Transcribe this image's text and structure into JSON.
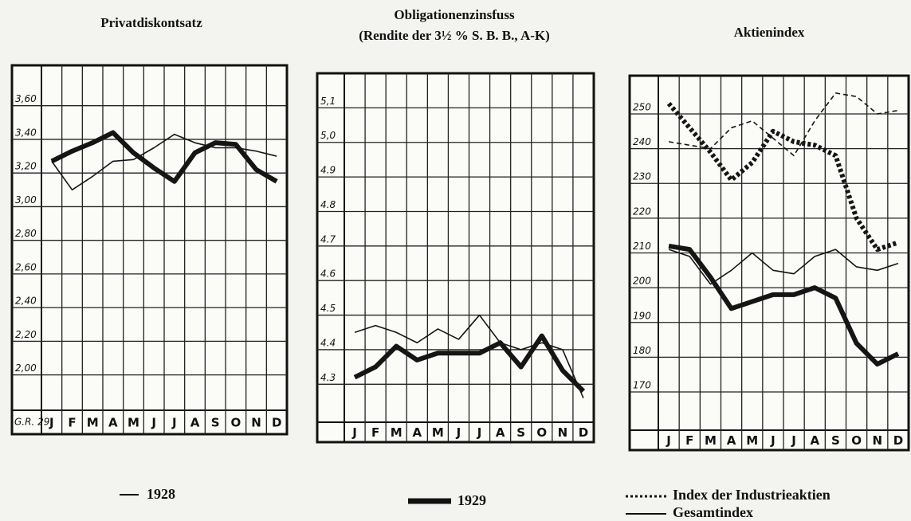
{
  "chart_data": [
    {
      "type": "line",
      "title": "Privatdiskontsatz",
      "annotation": "G.R. 29.",
      "categories": [
        "J",
        "F",
        "M",
        "A",
        "M",
        "J",
        "J",
        "A",
        "S",
        "O",
        "N",
        "D"
      ],
      "ylim": [
        1.79,
        3.84
      ],
      "yticks": [
        {
          "value": 2.0,
          "label": "2,00"
        },
        {
          "value": 2.2,
          "label": "2,20"
        },
        {
          "value": 2.4,
          "label": "2,40"
        },
        {
          "value": 2.6,
          "label": "2,60"
        },
        {
          "value": 2.8,
          "label": "2,80"
        },
        {
          "value": 3.0,
          "label": "3,00"
        },
        {
          "value": 3.2,
          "label": "3,20"
        },
        {
          "value": 3.4,
          "label": "3,40"
        },
        {
          "value": 3.6,
          "label": "3,60"
        }
      ],
      "grid": true,
      "series": [
        {
          "name": "1928",
          "color": "#151515",
          "width": "thin",
          "dashed": false,
          "values": [
            3.27,
            3.1,
            3.18,
            3.27,
            3.28,
            3.35,
            3.43,
            3.38,
            3.35,
            3.35,
            3.33,
            3.3
          ]
        },
        {
          "name": "1929",
          "color": "#151515",
          "width": "thick",
          "dashed": false,
          "values": [
            3.27,
            3.33,
            3.38,
            3.44,
            3.32,
            3.23,
            3.15,
            3.32,
            3.38,
            3.37,
            3.22,
            3.15
          ]
        }
      ]
    },
    {
      "type": "line",
      "title": "Obligationenzinsfuss",
      "subtitle": "(Rendite der 3½ % S. B. B., A-K)",
      "categories": [
        "J",
        "F",
        "M",
        "A",
        "M",
        "J",
        "J",
        "A",
        "S",
        "O",
        "N",
        "D"
      ],
      "ylim": [
        4.19,
        5.2
      ],
      "yticks": [
        4.3,
        4.4,
        4.5,
        4.6,
        4.7,
        4.8,
        4.9,
        {
          "value": 5.0,
          "label": "5,0"
        },
        {
          "value": 5.1,
          "label": "5,1"
        }
      ],
      "grid": true,
      "series": [
        {
          "name": "1928",
          "color": "#151515",
          "width": "thin",
          "dashed": false,
          "values": [
            4.45,
            4.47,
            4.45,
            4.42,
            4.46,
            4.43,
            4.5,
            4.42,
            4.4,
            4.42,
            4.4,
            4.26
          ]
        },
        {
          "name": "1929",
          "color": "#151515",
          "width": "thick",
          "dashed": false,
          "values": [
            4.32,
            4.35,
            4.41,
            4.37,
            4.39,
            4.39,
            4.39,
            4.42,
            4.35,
            4.44,
            4.34,
            4.28
          ]
        }
      ]
    },
    {
      "type": "line",
      "title": "Aktienindex",
      "categories": [
        "J",
        "F",
        "M",
        "A",
        "M",
        "J",
        "J",
        "A",
        "S",
        "O",
        "N",
        "D"
      ],
      "ylim": [
        159,
        261
      ],
      "yticks": [
        170,
        180,
        190,
        200,
        210,
        220,
        230,
        240,
        250
      ],
      "grid": true,
      "series": [
        {
          "name": "Index der Industrieaktien",
          "color": "#151515",
          "width": "thin",
          "dashed": true,
          "values": [
            242,
            241,
            240,
            246,
            248,
            243,
            238,
            248,
            256,
            255,
            250,
            251
          ]
        },
        {
          "name": "Index der Industrieaktien",
          "color": "#151515",
          "width": "thick",
          "dashed": true,
          "values": [
            253,
            246,
            239,
            231,
            236,
            245,
            242,
            241,
            238,
            220,
            211,
            213
          ]
        },
        {
          "name": "Gesamtindex",
          "color": "#151515",
          "width": "thin",
          "dashed": false,
          "values": [
            211,
            209,
            201,
            205,
            210,
            205,
            204,
            209,
            211,
            206,
            205,
            207
          ]
        },
        {
          "name": "Gesamtindex",
          "color": "#151515",
          "width": "thick",
          "dashed": false,
          "values": [
            212,
            211,
            203,
            194,
            196,
            198,
            198,
            200,
            197,
            184,
            178,
            181
          ]
        }
      ]
    }
  ]
}
